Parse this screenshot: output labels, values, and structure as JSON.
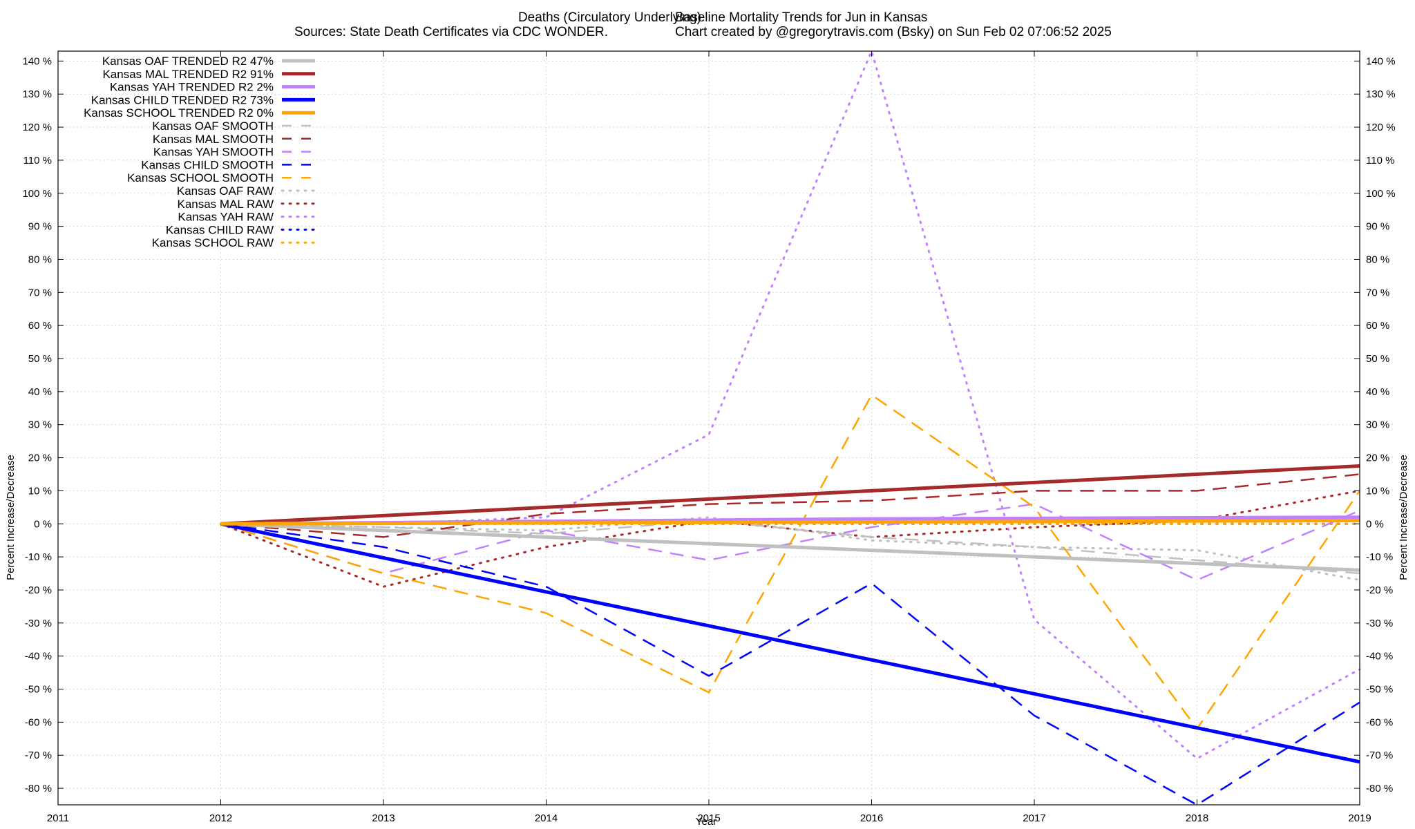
{
  "header": {
    "title_left": "Deaths (Circulatory Underlying)",
    "title_right": "Baseline Mortality Trends for Jun in Kansas",
    "subtitle_left": "Sources: State Death Certificates via CDC WONDER.",
    "subtitle_right": "Chart created by @gregorytravis.com (Bsky) on Sun Feb 02 07:06:52 2025"
  },
  "chart_data": {
    "type": "line",
    "xlabel": "Year",
    "ylabel_left": "Percent Increase/Decrease",
    "ylabel_right": "Percent Increase/Decrease",
    "xlim": [
      2011,
      2019
    ],
    "ylim": [
      -85,
      143
    ],
    "x_ticks": [
      "2011",
      "2012",
      "2013",
      "2014",
      "2015",
      "2016",
      "2017",
      "2018",
      "2019"
    ],
    "y_ticks": [
      "140 %",
      "130 %",
      "120 %",
      "110 %",
      "100 %",
      "90 %",
      "80 %",
      "70 %",
      "60 %",
      "50 %",
      "40 %",
      "30 %",
      "20 %",
      "10 %",
      "0 %",
      "-10 %",
      "-20 %",
      "-30 %",
      "-40 %",
      "-50 %",
      "-60 %",
      "-70 %",
      "-80 %"
    ],
    "y_tick_values": [
      140,
      130,
      120,
      110,
      100,
      90,
      80,
      70,
      60,
      50,
      40,
      30,
      20,
      10,
      0,
      -10,
      -20,
      -30,
      -40,
      -50,
      -60,
      -70,
      -80
    ],
    "grid": true,
    "legend_position": "top-left",
    "series": [
      {
        "name": "Kansas OAF TRENDED R2  47%",
        "style": "solid",
        "color": "#c0c0c0",
        "x": [
          2012,
          2019
        ],
        "y": [
          0,
          -14
        ]
      },
      {
        "name": "Kansas MAL TRENDED R2  91%",
        "style": "solid",
        "color": "#a52a2a",
        "x": [
          2012,
          2019
        ],
        "y": [
          0,
          17.5
        ]
      },
      {
        "name": "Kansas YAH TRENDED R2   2%",
        "style": "solid",
        "color": "#c080ff",
        "x": [
          2012,
          2016,
          2019
        ],
        "y": [
          0,
          1.5,
          2
        ]
      },
      {
        "name": "Kansas CHILD TRENDED R2  73%",
        "style": "solid",
        "color": "#0000ff",
        "x": [
          2012,
          2019
        ],
        "y": [
          0,
          -72
        ]
      },
      {
        "name": "Kansas SCHOOL TRENDED R2   0%",
        "style": "solid",
        "color": "#ffa500",
        "x": [
          2012,
          2019
        ],
        "y": [
          0,
          1
        ]
      },
      {
        "name": "Kansas OAF SMOOTH",
        "style": "dash",
        "color": "#c0c0c0",
        "x": [
          2012,
          2013,
          2014,
          2015,
          2016,
          2017,
          2018,
          2019
        ],
        "y": [
          0,
          -1,
          -3,
          1,
          -4,
          -7,
          -11,
          -15
        ]
      },
      {
        "name": "Kansas MAL SMOOTH",
        "style": "dash",
        "color": "#a52a2a",
        "x": [
          2012,
          2013,
          2014,
          2015,
          2016,
          2017,
          2018,
          2019
        ],
        "y": [
          0,
          -4,
          3,
          6,
          7,
          10,
          10,
          15
        ]
      },
      {
        "name": "Kansas YAH SMOOTH",
        "style": "dash",
        "color": "#c080ff",
        "x": [
          2012,
          2013,
          2014,
          2015,
          2016,
          2017,
          2018,
          2019
        ],
        "y": [
          0,
          -15,
          -2,
          -11,
          -1,
          6,
          -17,
          4
        ]
      },
      {
        "name": "Kansas CHILD SMOOTH",
        "style": "dash",
        "color": "#0000ff",
        "x": [
          2012,
          2013,
          2014,
          2015,
          2016,
          2017,
          2018,
          2019
        ],
        "y": [
          0,
          -7,
          -19,
          -46,
          -18,
          -58,
          -85,
          -54
        ]
      },
      {
        "name": "Kansas SCHOOL SMOOTH",
        "style": "dash",
        "color": "#ffa500",
        "x": [
          2012,
          2013,
          2014,
          2015,
          2016,
          2017,
          2018,
          2019
        ],
        "y": [
          0,
          -15,
          -27,
          -51,
          39,
          5,
          -62,
          10
        ]
      },
      {
        "name": "Kansas OAF RAW",
        "style": "dot",
        "color": "#c0c0c0",
        "x": [
          2012,
          2013,
          2014,
          2015,
          2016,
          2017,
          2018,
          2019
        ],
        "y": [
          0,
          -1,
          -2,
          2,
          -5,
          -7,
          -8,
          -17
        ]
      },
      {
        "name": "Kansas MAL RAW",
        "style": "dot",
        "color": "#a52a2a",
        "x": [
          2012,
          2013,
          2014,
          2015,
          2016,
          2017,
          2018,
          2019
        ],
        "y": [
          0,
          -19,
          -7,
          1,
          -4,
          -1,
          1,
          10
        ]
      },
      {
        "name": "Kansas YAH RAW",
        "style": "dot",
        "color": "#c080ff",
        "x": [
          2012,
          2013,
          2014,
          2015,
          2016,
          2017,
          2018,
          2019
        ],
        "y": [
          0,
          0,
          2,
          27,
          143,
          -29,
          -71,
          -44
        ]
      },
      {
        "name": "Kansas CHILD RAW",
        "style": "dot",
        "color": "#0000ff",
        "x": [
          2012,
          2013,
          2014,
          2015,
          2016,
          2017,
          2018,
          2019
        ],
        "y": [
          0,
          0,
          0,
          0,
          0,
          0,
          0,
          0
        ]
      },
      {
        "name": "Kansas SCHOOL RAW",
        "style": "dot",
        "color": "#ffa500",
        "x": [
          2012,
          2013,
          2014,
          2015,
          2016,
          2017,
          2018,
          2019
        ],
        "y": [
          0,
          0,
          0,
          0,
          0,
          0,
          0,
          0
        ]
      }
    ]
  }
}
